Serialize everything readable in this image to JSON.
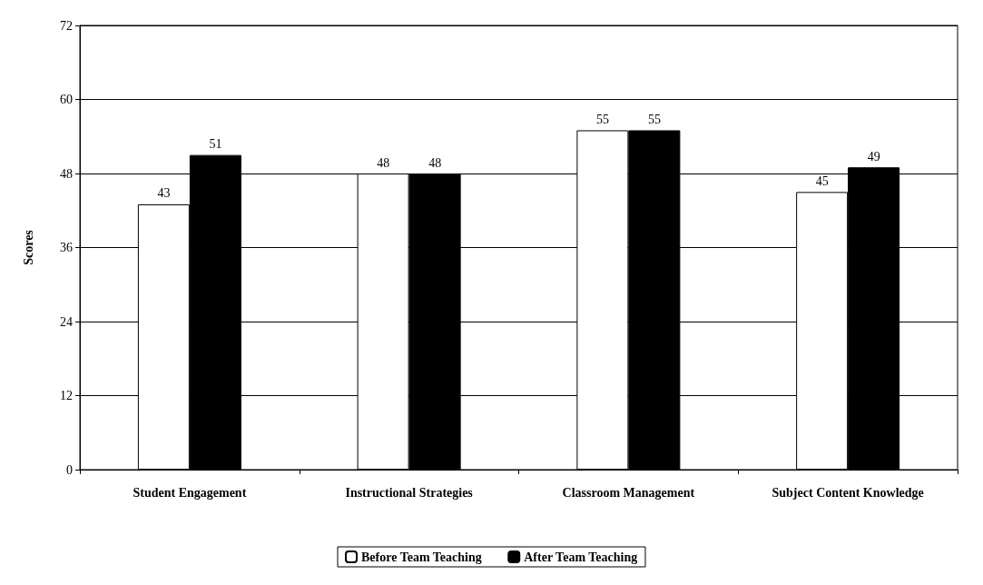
{
  "chart_data": {
    "type": "bar",
    "ylabel": "Scores",
    "categories": [
      "Student Engagement",
      "Instructional Strategies",
      "Classroom Management",
      "Subject Content Knowledge"
    ],
    "series": [
      {
        "name": "Before Team Teaching",
        "color": "#ffffff",
        "values": [
          43,
          48,
          55,
          45
        ]
      },
      {
        "name": "After Team Teaching",
        "color": "#000000",
        "values": [
          51,
          48,
          55,
          49
        ]
      }
    ],
    "ylim": [
      0,
      72
    ],
    "yticks": [
      0,
      12,
      24,
      36,
      48,
      60,
      72
    ],
    "grid": "y",
    "legend": "bottom",
    "data_labels": true
  }
}
